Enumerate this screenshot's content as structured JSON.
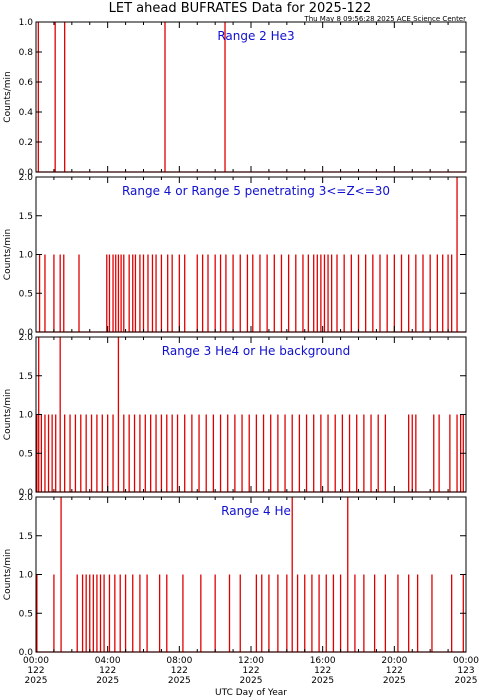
{
  "title": "LET ahead BUFRATES Data for 2025-122",
  "timestamp": "Thu May  8 09:56:28 2025 ACE Science Center",
  "xlabel": "UTC Day of Year",
  "colors": {
    "series": "#e00000",
    "panel_title": "#1010d0",
    "frame": "#000000"
  },
  "x_tick_labels": [
    [
      "00:00",
      "122",
      "2025"
    ],
    [
      "04:00",
      "122",
      "2025"
    ],
    [
      "08:00",
      "122",
      "2025"
    ],
    [
      "12:00",
      "122",
      "2025"
    ],
    [
      "16:00",
      "122",
      "2025"
    ],
    [
      "20:00",
      "122",
      "2025"
    ],
    [
      "00:00",
      "123",
      "2025"
    ]
  ],
  "chart_data": [
    {
      "type": "line",
      "title": "Range 2 He3",
      "ylabel": "Counts/min",
      "xlim": [
        0,
        24
      ],
      "ylim": [
        0,
        1.0
      ],
      "y_ticks": [
        "0.0",
        "0.2",
        "0.4",
        "0.6",
        "0.8",
        "1.0"
      ],
      "x_unit": "hours since 2025-122 00:00 UTC",
      "spikes": [
        {
          "x": 0.13,
          "y": 1.0
        },
        {
          "x": 1.07,
          "y": 1.0
        },
        {
          "x": 1.6,
          "y": 1.0
        },
        {
          "x": 7.2,
          "y": 1.0
        },
        {
          "x": 10.55,
          "y": 1.0
        }
      ]
    },
    {
      "type": "line",
      "title": "Range 4 or Range 5 penetrating 3<=Z<=30",
      "ylabel": "Counts/min",
      "xlim": [
        0,
        24
      ],
      "ylim": [
        0,
        2.0
      ],
      "y_ticks": [
        "0.0",
        "0.5",
        "1.0",
        "1.5",
        "2.0"
      ],
      "spikes": [
        {
          "x": 0.2,
          "y": 1
        },
        {
          "x": 0.5,
          "y": 1
        },
        {
          "x": 1.0,
          "y": 1
        },
        {
          "x": 1.35,
          "y": 1
        },
        {
          "x": 1.55,
          "y": 1
        },
        {
          "x": 2.4,
          "y": 1
        },
        {
          "x": 3.95,
          "y": 1
        },
        {
          "x": 4.1,
          "y": 1
        },
        {
          "x": 4.3,
          "y": 1
        },
        {
          "x": 4.45,
          "y": 1
        },
        {
          "x": 4.6,
          "y": 1
        },
        {
          "x": 4.75,
          "y": 1
        },
        {
          "x": 4.9,
          "y": 1
        },
        {
          "x": 5.2,
          "y": 1
        },
        {
          "x": 5.4,
          "y": 1
        },
        {
          "x": 5.55,
          "y": 1
        },
        {
          "x": 5.8,
          "y": 1
        },
        {
          "x": 6.0,
          "y": 1
        },
        {
          "x": 6.25,
          "y": 1
        },
        {
          "x": 6.5,
          "y": 1
        },
        {
          "x": 6.7,
          "y": 1
        },
        {
          "x": 7.0,
          "y": 1
        },
        {
          "x": 7.35,
          "y": 1
        },
        {
          "x": 7.6,
          "y": 1
        },
        {
          "x": 8.0,
          "y": 1
        },
        {
          "x": 8.3,
          "y": 1
        },
        {
          "x": 9.0,
          "y": 1
        },
        {
          "x": 9.3,
          "y": 1
        },
        {
          "x": 9.6,
          "y": 1
        },
        {
          "x": 10.0,
          "y": 1
        },
        {
          "x": 10.3,
          "y": 1
        },
        {
          "x": 10.6,
          "y": 1
        },
        {
          "x": 11.0,
          "y": 1
        },
        {
          "x": 11.4,
          "y": 1
        },
        {
          "x": 11.8,
          "y": 1
        },
        {
          "x": 12.1,
          "y": 1
        },
        {
          "x": 12.5,
          "y": 1
        },
        {
          "x": 12.9,
          "y": 1
        },
        {
          "x": 13.3,
          "y": 1
        },
        {
          "x": 13.7,
          "y": 1
        },
        {
          "x": 14.1,
          "y": 1
        },
        {
          "x": 14.5,
          "y": 1
        },
        {
          "x": 14.9,
          "y": 1
        },
        {
          "x": 15.2,
          "y": 1
        },
        {
          "x": 15.5,
          "y": 1
        },
        {
          "x": 15.7,
          "y": 1
        },
        {
          "x": 15.9,
          "y": 1
        },
        {
          "x": 16.1,
          "y": 1
        },
        {
          "x": 16.3,
          "y": 1
        },
        {
          "x": 16.5,
          "y": 1
        },
        {
          "x": 16.8,
          "y": 1
        },
        {
          "x": 17.2,
          "y": 1
        },
        {
          "x": 17.6,
          "y": 1
        },
        {
          "x": 18.0,
          "y": 1
        },
        {
          "x": 18.4,
          "y": 1
        },
        {
          "x": 18.8,
          "y": 1
        },
        {
          "x": 19.2,
          "y": 1
        },
        {
          "x": 19.6,
          "y": 1
        },
        {
          "x": 20.0,
          "y": 1
        },
        {
          "x": 20.4,
          "y": 1
        },
        {
          "x": 20.8,
          "y": 1
        },
        {
          "x": 21.2,
          "y": 1
        },
        {
          "x": 21.6,
          "y": 1
        },
        {
          "x": 22.0,
          "y": 1
        },
        {
          "x": 22.4,
          "y": 1
        },
        {
          "x": 22.7,
          "y": 1
        },
        {
          "x": 23.0,
          "y": 1
        },
        {
          "x": 23.2,
          "y": 1
        },
        {
          "x": 23.5,
          "y": 2.0
        }
      ]
    },
    {
      "type": "line",
      "title": "Range 3 He4 or He background",
      "ylabel": "Counts/min",
      "xlim": [
        0,
        24
      ],
      "ylim": [
        0,
        2.0
      ],
      "y_ticks": [
        "0.0",
        "0.5",
        "1.0",
        "1.5",
        "2.0"
      ],
      "spikes": [
        {
          "x": 0.05,
          "y": 1
        },
        {
          "x": 0.15,
          "y": 2
        },
        {
          "x": 0.3,
          "y": 1
        },
        {
          "x": 0.5,
          "y": 1
        },
        {
          "x": 0.7,
          "y": 1
        },
        {
          "x": 0.9,
          "y": 1
        },
        {
          "x": 1.1,
          "y": 1
        },
        {
          "x": 1.35,
          "y": 2
        },
        {
          "x": 1.6,
          "y": 1
        },
        {
          "x": 1.9,
          "y": 1
        },
        {
          "x": 2.2,
          "y": 1
        },
        {
          "x": 2.5,
          "y": 1
        },
        {
          "x": 2.8,
          "y": 1
        },
        {
          "x": 3.1,
          "y": 1
        },
        {
          "x": 3.4,
          "y": 1
        },
        {
          "x": 3.7,
          "y": 1
        },
        {
          "x": 4.0,
          "y": 1
        },
        {
          "x": 4.3,
          "y": 1
        },
        {
          "x": 4.6,
          "y": 2
        },
        {
          "x": 4.9,
          "y": 1
        },
        {
          "x": 5.2,
          "y": 1
        },
        {
          "x": 5.5,
          "y": 1
        },
        {
          "x": 5.8,
          "y": 1
        },
        {
          "x": 6.1,
          "y": 1
        },
        {
          "x": 6.4,
          "y": 1
        },
        {
          "x": 6.7,
          "y": 1
        },
        {
          "x": 7.0,
          "y": 1
        },
        {
          "x": 7.3,
          "y": 1
        },
        {
          "x": 7.6,
          "y": 1
        },
        {
          "x": 7.9,
          "y": 1
        },
        {
          "x": 8.3,
          "y": 1
        },
        {
          "x": 8.7,
          "y": 1
        },
        {
          "x": 9.1,
          "y": 1
        },
        {
          "x": 9.5,
          "y": 1
        },
        {
          "x": 9.9,
          "y": 1
        },
        {
          "x": 10.3,
          "y": 1
        },
        {
          "x": 10.7,
          "y": 1
        },
        {
          "x": 11.1,
          "y": 1
        },
        {
          "x": 11.5,
          "y": 1
        },
        {
          "x": 11.9,
          "y": 1
        },
        {
          "x": 12.3,
          "y": 1
        },
        {
          "x": 12.7,
          "y": 1
        },
        {
          "x": 13.1,
          "y": 1
        },
        {
          "x": 13.5,
          "y": 1
        },
        {
          "x": 13.9,
          "y": 1
        },
        {
          "x": 14.3,
          "y": 1
        },
        {
          "x": 14.7,
          "y": 1
        },
        {
          "x": 15.1,
          "y": 1
        },
        {
          "x": 15.5,
          "y": 1
        },
        {
          "x": 15.9,
          "y": 1
        },
        {
          "x": 16.3,
          "y": 1
        },
        {
          "x": 16.7,
          "y": 1
        },
        {
          "x": 17.1,
          "y": 1
        },
        {
          "x": 17.5,
          "y": 1
        },
        {
          "x": 17.9,
          "y": 1
        },
        {
          "x": 18.3,
          "y": 1
        },
        {
          "x": 18.7,
          "y": 1
        },
        {
          "x": 19.1,
          "y": 1
        },
        {
          "x": 19.5,
          "y": 1
        },
        {
          "x": 20.8,
          "y": 1
        },
        {
          "x": 21.0,
          "y": 1
        },
        {
          "x": 21.2,
          "y": 1
        },
        {
          "x": 22.2,
          "y": 1
        },
        {
          "x": 22.5,
          "y": 1
        },
        {
          "x": 23.1,
          "y": 1
        },
        {
          "x": 23.5,
          "y": 1
        },
        {
          "x": 23.7,
          "y": 1
        },
        {
          "x": 23.85,
          "y": 1
        }
      ]
    },
    {
      "type": "line",
      "title": "Range 4 He",
      "ylabel": "Counts/min",
      "xlim": [
        0,
        24
      ],
      "ylim": [
        0,
        2.0
      ],
      "y_ticks": [
        "0.0",
        "0.5",
        "1.0",
        "1.5",
        "2.0"
      ],
      "spikes": [
        {
          "x": 0.05,
          "y": 1
        },
        {
          "x": 1.0,
          "y": 1
        },
        {
          "x": 1.4,
          "y": 2
        },
        {
          "x": 2.3,
          "y": 1
        },
        {
          "x": 2.6,
          "y": 1
        },
        {
          "x": 2.8,
          "y": 1
        },
        {
          "x": 3.0,
          "y": 1
        },
        {
          "x": 3.2,
          "y": 1
        },
        {
          "x": 3.4,
          "y": 1
        },
        {
          "x": 3.6,
          "y": 1
        },
        {
          "x": 3.8,
          "y": 1
        },
        {
          "x": 4.1,
          "y": 1
        },
        {
          "x": 4.4,
          "y": 1
        },
        {
          "x": 4.7,
          "y": 1
        },
        {
          "x": 5.0,
          "y": 1
        },
        {
          "x": 5.4,
          "y": 1
        },
        {
          "x": 5.8,
          "y": 1
        },
        {
          "x": 6.2,
          "y": 1
        },
        {
          "x": 6.9,
          "y": 1
        },
        {
          "x": 7.3,
          "y": 1
        },
        {
          "x": 8.2,
          "y": 1
        },
        {
          "x": 9.2,
          "y": 1
        },
        {
          "x": 10.0,
          "y": 1
        },
        {
          "x": 10.8,
          "y": 1
        },
        {
          "x": 11.4,
          "y": 1
        },
        {
          "x": 12.3,
          "y": 1
        },
        {
          "x": 12.6,
          "y": 1
        },
        {
          "x": 13.0,
          "y": 1
        },
        {
          "x": 13.5,
          "y": 1
        },
        {
          "x": 14.0,
          "y": 1
        },
        {
          "x": 14.3,
          "y": 2.5
        },
        {
          "x": 14.6,
          "y": 1
        },
        {
          "x": 15.0,
          "y": 1
        },
        {
          "x": 15.4,
          "y": 1
        },
        {
          "x": 15.8,
          "y": 1
        },
        {
          "x": 16.2,
          "y": 1
        },
        {
          "x": 16.6,
          "y": 1
        },
        {
          "x": 17.0,
          "y": 1
        },
        {
          "x": 17.4,
          "y": 2.5
        },
        {
          "x": 17.8,
          "y": 1
        },
        {
          "x": 18.3,
          "y": 1
        },
        {
          "x": 18.9,
          "y": 1
        },
        {
          "x": 19.5,
          "y": 1
        },
        {
          "x": 20.2,
          "y": 1
        },
        {
          "x": 20.8,
          "y": 1
        },
        {
          "x": 21.3,
          "y": 1
        },
        {
          "x": 22.1,
          "y": 1
        },
        {
          "x": 23.2,
          "y": 1
        },
        {
          "x": 23.85,
          "y": 1
        }
      ]
    }
  ]
}
